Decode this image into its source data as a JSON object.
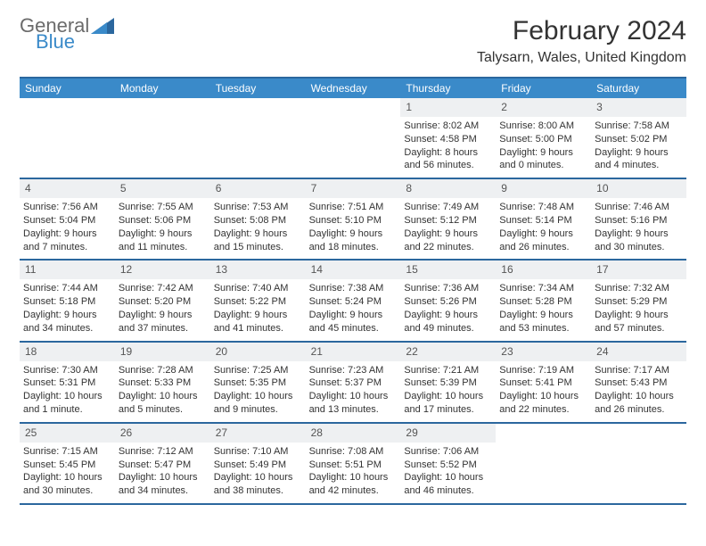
{
  "logo": {
    "word1": "General",
    "word2": "Blue"
  },
  "title": "February 2024",
  "location": "Talysarn, Wales, United Kingdom",
  "colors": {
    "header_bg": "#3a8ac9",
    "header_text": "#ffffff",
    "rule": "#2b679e",
    "daynum_bg": "#eef0f2",
    "body_text": "#333333",
    "logo_gray": "#6b6b6b",
    "logo_blue": "#3a8ac9"
  },
  "typography": {
    "title_fontsize": 30,
    "location_fontsize": 16,
    "dayheader_fontsize": 12,
    "cell_fontsize": 11
  },
  "day_headers": [
    "Sunday",
    "Monday",
    "Tuesday",
    "Wednesday",
    "Thursday",
    "Friday",
    "Saturday"
  ],
  "weeks": [
    [
      {
        "empty": true
      },
      {
        "empty": true
      },
      {
        "empty": true
      },
      {
        "empty": true
      },
      {
        "day": "1",
        "sunrise": "Sunrise: 8:02 AM",
        "sunset": "Sunset: 4:58 PM",
        "daylight": "Daylight: 8 hours and 56 minutes."
      },
      {
        "day": "2",
        "sunrise": "Sunrise: 8:00 AM",
        "sunset": "Sunset: 5:00 PM",
        "daylight": "Daylight: 9 hours and 0 minutes."
      },
      {
        "day": "3",
        "sunrise": "Sunrise: 7:58 AM",
        "sunset": "Sunset: 5:02 PM",
        "daylight": "Daylight: 9 hours and 4 minutes."
      }
    ],
    [
      {
        "day": "4",
        "sunrise": "Sunrise: 7:56 AM",
        "sunset": "Sunset: 5:04 PM",
        "daylight": "Daylight: 9 hours and 7 minutes."
      },
      {
        "day": "5",
        "sunrise": "Sunrise: 7:55 AM",
        "sunset": "Sunset: 5:06 PM",
        "daylight": "Daylight: 9 hours and 11 minutes."
      },
      {
        "day": "6",
        "sunrise": "Sunrise: 7:53 AM",
        "sunset": "Sunset: 5:08 PM",
        "daylight": "Daylight: 9 hours and 15 minutes."
      },
      {
        "day": "7",
        "sunrise": "Sunrise: 7:51 AM",
        "sunset": "Sunset: 5:10 PM",
        "daylight": "Daylight: 9 hours and 18 minutes."
      },
      {
        "day": "8",
        "sunrise": "Sunrise: 7:49 AM",
        "sunset": "Sunset: 5:12 PM",
        "daylight": "Daylight: 9 hours and 22 minutes."
      },
      {
        "day": "9",
        "sunrise": "Sunrise: 7:48 AM",
        "sunset": "Sunset: 5:14 PM",
        "daylight": "Daylight: 9 hours and 26 minutes."
      },
      {
        "day": "10",
        "sunrise": "Sunrise: 7:46 AM",
        "sunset": "Sunset: 5:16 PM",
        "daylight": "Daylight: 9 hours and 30 minutes."
      }
    ],
    [
      {
        "day": "11",
        "sunrise": "Sunrise: 7:44 AM",
        "sunset": "Sunset: 5:18 PM",
        "daylight": "Daylight: 9 hours and 34 minutes."
      },
      {
        "day": "12",
        "sunrise": "Sunrise: 7:42 AM",
        "sunset": "Sunset: 5:20 PM",
        "daylight": "Daylight: 9 hours and 37 minutes."
      },
      {
        "day": "13",
        "sunrise": "Sunrise: 7:40 AM",
        "sunset": "Sunset: 5:22 PM",
        "daylight": "Daylight: 9 hours and 41 minutes."
      },
      {
        "day": "14",
        "sunrise": "Sunrise: 7:38 AM",
        "sunset": "Sunset: 5:24 PM",
        "daylight": "Daylight: 9 hours and 45 minutes."
      },
      {
        "day": "15",
        "sunrise": "Sunrise: 7:36 AM",
        "sunset": "Sunset: 5:26 PM",
        "daylight": "Daylight: 9 hours and 49 minutes."
      },
      {
        "day": "16",
        "sunrise": "Sunrise: 7:34 AM",
        "sunset": "Sunset: 5:28 PM",
        "daylight": "Daylight: 9 hours and 53 minutes."
      },
      {
        "day": "17",
        "sunrise": "Sunrise: 7:32 AM",
        "sunset": "Sunset: 5:29 PM",
        "daylight": "Daylight: 9 hours and 57 minutes."
      }
    ],
    [
      {
        "day": "18",
        "sunrise": "Sunrise: 7:30 AM",
        "sunset": "Sunset: 5:31 PM",
        "daylight": "Daylight: 10 hours and 1 minute."
      },
      {
        "day": "19",
        "sunrise": "Sunrise: 7:28 AM",
        "sunset": "Sunset: 5:33 PM",
        "daylight": "Daylight: 10 hours and 5 minutes."
      },
      {
        "day": "20",
        "sunrise": "Sunrise: 7:25 AM",
        "sunset": "Sunset: 5:35 PM",
        "daylight": "Daylight: 10 hours and 9 minutes."
      },
      {
        "day": "21",
        "sunrise": "Sunrise: 7:23 AM",
        "sunset": "Sunset: 5:37 PM",
        "daylight": "Daylight: 10 hours and 13 minutes."
      },
      {
        "day": "22",
        "sunrise": "Sunrise: 7:21 AM",
        "sunset": "Sunset: 5:39 PM",
        "daylight": "Daylight: 10 hours and 17 minutes."
      },
      {
        "day": "23",
        "sunrise": "Sunrise: 7:19 AM",
        "sunset": "Sunset: 5:41 PM",
        "daylight": "Daylight: 10 hours and 22 minutes."
      },
      {
        "day": "24",
        "sunrise": "Sunrise: 7:17 AM",
        "sunset": "Sunset: 5:43 PM",
        "daylight": "Daylight: 10 hours and 26 minutes."
      }
    ],
    [
      {
        "day": "25",
        "sunrise": "Sunrise: 7:15 AM",
        "sunset": "Sunset: 5:45 PM",
        "daylight": "Daylight: 10 hours and 30 minutes."
      },
      {
        "day": "26",
        "sunrise": "Sunrise: 7:12 AM",
        "sunset": "Sunset: 5:47 PM",
        "daylight": "Daylight: 10 hours and 34 minutes."
      },
      {
        "day": "27",
        "sunrise": "Sunrise: 7:10 AM",
        "sunset": "Sunset: 5:49 PM",
        "daylight": "Daylight: 10 hours and 38 minutes."
      },
      {
        "day": "28",
        "sunrise": "Sunrise: 7:08 AM",
        "sunset": "Sunset: 5:51 PM",
        "daylight": "Daylight: 10 hours and 42 minutes."
      },
      {
        "day": "29",
        "sunrise": "Sunrise: 7:06 AM",
        "sunset": "Sunset: 5:52 PM",
        "daylight": "Daylight: 10 hours and 46 minutes."
      },
      {
        "empty": true
      },
      {
        "empty": true
      }
    ]
  ]
}
